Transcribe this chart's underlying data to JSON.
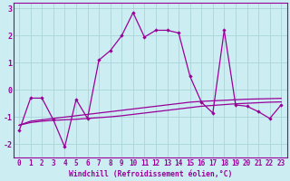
{
  "xlabel": "Windchill (Refroidissement éolien,°C)",
  "background_color": "#cceef2",
  "grid_color": "#aad4d8",
  "line_color": "#990099",
  "x_values": [
    0,
    1,
    2,
    3,
    4,
    5,
    6,
    7,
    8,
    9,
    10,
    11,
    12,
    13,
    14,
    15,
    16,
    17,
    18,
    19,
    20,
    21,
    22,
    23
  ],
  "line1": [
    -1.5,
    -0.3,
    -0.3,
    -1.1,
    -2.1,
    -0.35,
    -1.05,
    1.1,
    1.45,
    2.0,
    2.85,
    1.95,
    2.2,
    2.2,
    2.1,
    0.5,
    -0.45,
    -0.85,
    2.2,
    -0.55,
    -0.6,
    -0.8,
    -1.05,
    -0.55
  ],
  "line2": [
    -1.3,
    -1.15,
    -1.1,
    -1.05,
    -1.0,
    -0.95,
    -0.9,
    -0.85,
    -0.8,
    -0.75,
    -0.7,
    -0.65,
    -0.6,
    -0.55,
    -0.5,
    -0.45,
    -0.42,
    -0.4,
    -0.38,
    -0.36,
    -0.34,
    -0.33,
    -0.32,
    -0.31
  ],
  "line3": [
    -1.3,
    -1.2,
    -1.15,
    -1.12,
    -1.1,
    -1.08,
    -1.05,
    -1.02,
    -0.99,
    -0.95,
    -0.9,
    -0.85,
    -0.8,
    -0.75,
    -0.7,
    -0.65,
    -0.6,
    -0.57,
    -0.54,
    -0.51,
    -0.49,
    -0.47,
    -0.45,
    -0.44
  ],
  "ylim": [
    -2.5,
    3.2
  ],
  "xlim": [
    -0.5,
    23.5
  ],
  "yticks": [
    -2,
    -1,
    0,
    1,
    2,
    3
  ],
  "xlabel_fontsize": 5.8,
  "tick_fontsize": 5.5,
  "ylabel_fontsize": 6.0
}
